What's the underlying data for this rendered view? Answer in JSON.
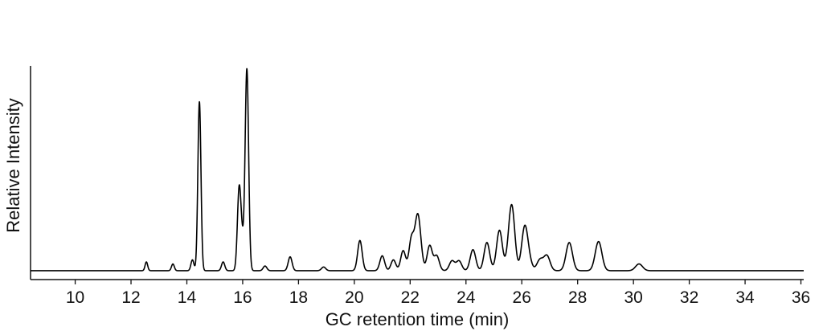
{
  "chart_data": {
    "type": "line",
    "title": "",
    "xlabel": "GC retention time (min)",
    "ylabel": "Relative Intensity",
    "xlim": [
      8.4,
      36.1
    ],
    "ylim": [
      0,
      100
    ],
    "grid": false,
    "legend": "none",
    "y_tick_labels_shown": false,
    "x_ticks": [
      10,
      12,
      14,
      16,
      18,
      20,
      22,
      24,
      26,
      28,
      30,
      32,
      34,
      36
    ],
    "x_tick_labels": [
      "10",
      "12",
      "14",
      "16",
      "18",
      "20",
      "22",
      "24",
      "26",
      "28",
      "30",
      "32",
      "34",
      "36"
    ],
    "baseline": 1.2,
    "peaks": [
      {
        "x": 12.55,
        "y": 5.5
      },
      {
        "x": 13.5,
        "y": 4.5
      },
      {
        "x": 14.2,
        "y": 6.5
      },
      {
        "x": 14.45,
        "y": 84
      },
      {
        "x": 15.3,
        "y": 5.5
      },
      {
        "x": 15.87,
        "y": 39
      },
      {
        "x": 15.97,
        "y": 15
      },
      {
        "x": 16.15,
        "y": 100
      },
      {
        "x": 16.8,
        "y": 3.5
      },
      {
        "x": 17.7,
        "y": 8
      },
      {
        "x": 18.9,
        "y": 3
      },
      {
        "x": 20.2,
        "y": 16
      },
      {
        "x": 21.0,
        "y": 8.5
      },
      {
        "x": 21.4,
        "y": 6.5
      },
      {
        "x": 21.75,
        "y": 11
      },
      {
        "x": 22.05,
        "y": 17
      },
      {
        "x": 22.25,
        "y": 22
      },
      {
        "x": 22.35,
        "y": 11.5
      },
      {
        "x": 22.7,
        "y": 13.5
      },
      {
        "x": 22.95,
        "y": 8.5
      },
      {
        "x": 23.5,
        "y": 6
      },
      {
        "x": 23.75,
        "y": 6
      },
      {
        "x": 24.25,
        "y": 11.5
      },
      {
        "x": 24.75,
        "y": 15
      },
      {
        "x": 25.2,
        "y": 21
      },
      {
        "x": 25.55,
        "y": 8
      },
      {
        "x": 25.65,
        "y": 29
      },
      {
        "x": 26.1,
        "y": 21.5
      },
      {
        "x": 26.25,
        "y": 6
      },
      {
        "x": 26.65,
        "y": 6.5
      },
      {
        "x": 26.9,
        "y": 8.5
      },
      {
        "x": 27.7,
        "y": 15
      },
      {
        "x": 28.75,
        "y": 15.5
      },
      {
        "x": 30.2,
        "y": 4.5
      }
    ]
  }
}
